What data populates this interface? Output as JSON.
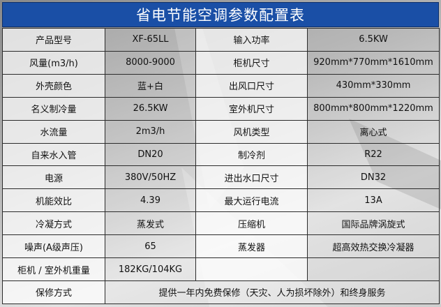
{
  "title": "省电节能空调参数配置表",
  "rows": [
    {
      "l1": "产品型号",
      "v1": "XF-65LL",
      "l2": "输入功率",
      "v2": "6.5KW"
    },
    {
      "l1": "风量(m3/h)",
      "v1": "8000-9000",
      "l2": "柜机尺寸",
      "v2": "920mm*770mm*1610mm"
    },
    {
      "l1": "外壳颜色",
      "v1": "蓝+白",
      "l2": "出风口尺寸",
      "v2": "430mm*330mm"
    },
    {
      "l1": "名义制冷量",
      "v1": "26.5KW",
      "l2": "室外机尺寸",
      "v2": "800mm*800mm*1220mm"
    },
    {
      "l1": "水流量",
      "v1": "2m3/h",
      "l2": "风机类型",
      "v2": "离心式"
    },
    {
      "l1": "自来水入管",
      "v1": "DN20",
      "l2": "制冷剂",
      "v2": "R22"
    },
    {
      "l1": "电源",
      "v1": "380V/50HZ",
      "l2": "进出水口尺寸",
      "v2": "DN32"
    },
    {
      "l1": "机能效比",
      "v1": "4.39",
      "l2": "最大运行电流",
      "v2": "13A"
    },
    {
      "l1": "冷凝方式",
      "v1": "蒸发式",
      "l2": "压缩机",
      "v2": "国际品牌涡旋式"
    },
    {
      "l1": "噪声(A级声压)",
      "v1": "65",
      "l2": "蒸发器",
      "v2": "超高效热交换冷凝器"
    },
    {
      "l1": "柜机 / 室外机重量",
      "v1": "182KG/104KG",
      "l2": "",
      "v2": ""
    }
  ],
  "warranty": {
    "label": "保修方式",
    "value": "提供一年内免费保修（天灾、人为损坏除外）和终身服务"
  },
  "colors": {
    "title_bg": "#1a4fa6",
    "border": "#2b2b2b"
  }
}
